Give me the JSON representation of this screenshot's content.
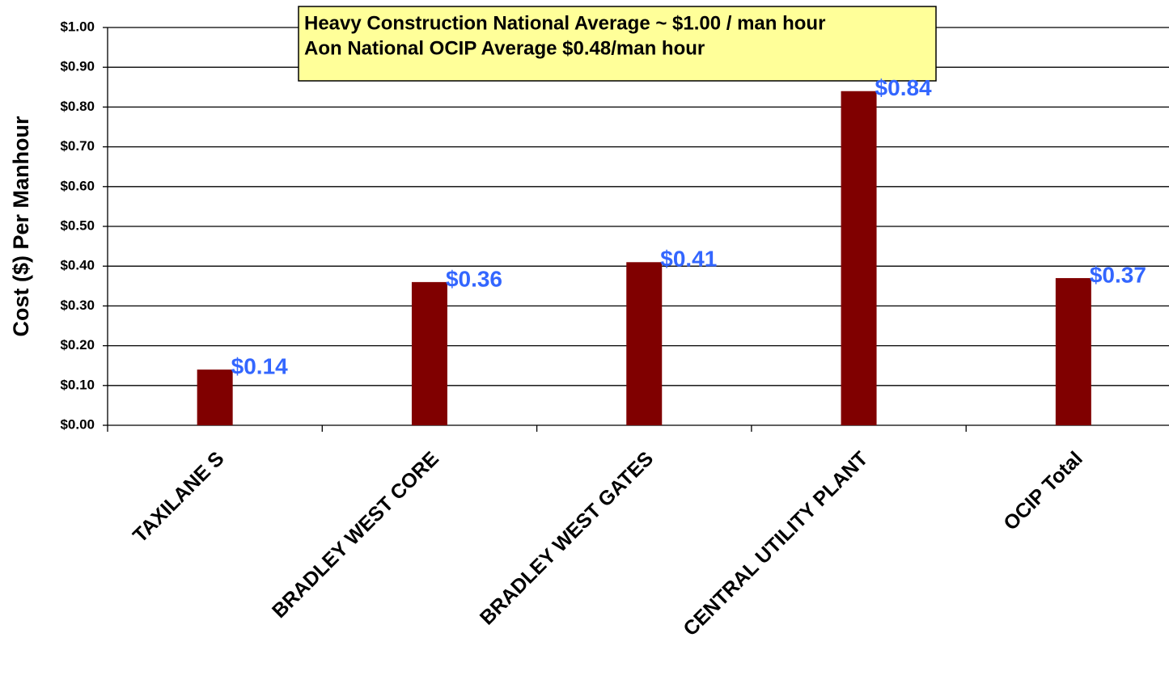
{
  "chart_data": {
    "type": "bar",
    "y_label": "Cost ($) Per Manhour",
    "annotations": [
      "Heavy Construction National Average ~ $1.00 / man hour",
      "Aon National OCIP Average $0.48/man hour"
    ],
    "categories": [
      "TAXILANE S",
      "BRADLEY WEST CORE",
      "BRADLEY WEST GATES",
      "CENTRAL UTILITY PLANT",
      "OCIP Total"
    ],
    "values": [
      0.14,
      0.36,
      0.41,
      0.84,
      0.37
    ],
    "value_labels": [
      "$0.14",
      "$0.36",
      "$0.41",
      "$0.84",
      "$0.37"
    ],
    "color": "#800000",
    "value_label_color": "#3366ff",
    "ylim": [
      0,
      1
    ],
    "yticks": [
      {
        "value": 0,
        "label": "$0.00"
      },
      {
        "value": 0.1,
        "label": "$0.10"
      },
      {
        "value": 0.2,
        "label": "$0.20"
      },
      {
        "value": 0.3,
        "label": "$0.30"
      },
      {
        "value": 0.4,
        "label": "$0.40"
      },
      {
        "value": 0.5,
        "label": "$0.50"
      },
      {
        "value": 0.6,
        "label": "$0.60"
      },
      {
        "value": 0.7,
        "label": "$0.70"
      },
      {
        "value": 0.8,
        "label": "$0.80"
      },
      {
        "value": 0.9,
        "label": "$0.90"
      },
      {
        "value": 1,
        "label": "$1.00"
      }
    ],
    "grid": true
  }
}
